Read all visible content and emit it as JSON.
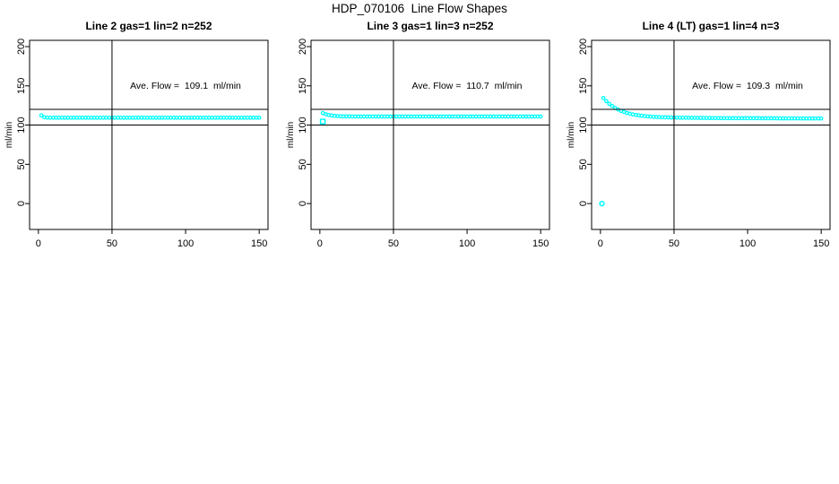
{
  "window_title": "HDP_070106  Line Flow Shapes",
  "colors": {
    "background": "#ffffff",
    "axis": "#000000",
    "points": "#00ffff"
  },
  "chart_data": {
    "type": "scatter",
    "title": "HDP_070106  Line Flow Shapes",
    "xlabel": "",
    "ylabel": "ml/min",
    "x_ticks": [
      0,
      50,
      100,
      150
    ],
    "y_ticks": [
      0,
      50,
      100,
      150,
      200
    ],
    "x_axis_range_shown": [
      -6,
      156
    ],
    "y_axis_range_shown": [
      -33,
      208
    ],
    "grid": false,
    "legend": "none",
    "reference_lines": {
      "horizontal_values": [
        100,
        120
      ],
      "vertical_values": [
        50
      ]
    },
    "annotation_anchor_data_coords": {
      "x": 100,
      "y": 150
    },
    "panels": [
      {
        "title": "Line 2 gas=1 lin=2 n=252",
        "annotation": "Ave. Flow =  109.1  ml/min",
        "ave_flow_ml_min": 109.1,
        "n": 252,
        "series": {
          "x_start": 2,
          "x_step": 2,
          "y_values": [
            112.4,
            110.0,
            109.5,
            109.4,
            109.4,
            109.4,
            109.4,
            109.4,
            109.4,
            109.4,
            109.4,
            109.4,
            109.4,
            109.4,
            109.4,
            109.4,
            109.4,
            109.4,
            109.4,
            109.4,
            109.4,
            109.4,
            109.4,
            109.4,
            109.4,
            109.4,
            109.4,
            109.4,
            109.4,
            109.4,
            109.4,
            109.4,
            109.4,
            109.4,
            109.4,
            109.4,
            109.4,
            109.4,
            109.4,
            109.4,
            109.4,
            109.4,
            109.4,
            109.4,
            109.4,
            109.4,
            109.4,
            109.4,
            109.4,
            109.4,
            109.4,
            109.4,
            109.4,
            109.4,
            109.4,
            109.4,
            109.4,
            109.4,
            109.4,
            109.4,
            109.4,
            109.4,
            109.4,
            109.4,
            109.4,
            109.4,
            109.4,
            109.4,
            109.4,
            109.4,
            109.4,
            109.4,
            109.4,
            109.4,
            109.4
          ]
        },
        "outliers": []
      },
      {
        "title": "Line 3 gas=1 lin=3 n=252",
        "annotation": "Ave. Flow =  110.7  ml/min",
        "ave_flow_ml_min": 110.7,
        "n": 252,
        "series": {
          "x_start": 2,
          "x_step": 2,
          "y_values": [
            115.4,
            113.9,
            112.9,
            112.3,
            111.8,
            111.5,
            111.3,
            111.2,
            111.1,
            111.0,
            110.9,
            110.9,
            110.9,
            110.9,
            110.9,
            110.9,
            110.9,
            110.9,
            110.9,
            110.9,
            110.9,
            110.9,
            110.9,
            110.9,
            110.9,
            110.9,
            110.9,
            110.9,
            110.9,
            110.9,
            110.9,
            110.9,
            110.9,
            110.9,
            110.9,
            110.9,
            110.9,
            110.9,
            110.9,
            110.9,
            110.9,
            110.9,
            110.9,
            110.9,
            110.9,
            110.9,
            110.9,
            110.9,
            110.9,
            110.9,
            110.9,
            110.9,
            110.9,
            110.9,
            110.9,
            110.9,
            110.9,
            110.9,
            110.9,
            110.9,
            110.9,
            110.9,
            110.9,
            110.9,
            110.9,
            110.9,
            110.9,
            110.9,
            110.9,
            110.9,
            110.9,
            110.9,
            110.9,
            110.9,
            110.9
          ]
        },
        "outliers": [
          {
            "x": 2,
            "y": 104.5,
            "marker": "square"
          }
        ]
      },
      {
        "title": "Line 4 (LT) gas=1 lin=4 n=3",
        "annotation": "Ave. Flow =  109.3  ml/min",
        "ave_flow_ml_min": 109.3,
        "n": 3,
        "series": {
          "x_start": 2,
          "x_step": 2,
          "y_values": [
            134.5,
            130.6,
            127.1,
            124.2,
            121.8,
            119.8,
            118.1,
            116.7,
            115.5,
            114.5,
            113.7,
            113.0,
            112.4,
            111.9,
            111.5,
            111.1,
            110.8,
            110.6,
            110.4,
            110.2,
            110.0,
            109.9,
            109.8,
            109.7,
            109.6,
            109.5,
            109.4,
            109.4,
            109.3,
            109.3,
            109.2,
            109.2,
            109.2,
            109.1,
            109.1,
            109.1,
            109.0,
            109.0,
            109.0,
            109.0,
            108.9,
            108.9,
            108.9,
            108.9,
            108.8,
            108.8,
            108.8,
            108.8,
            108.8,
            108.7,
            108.7,
            108.7,
            108.7,
            108.7,
            108.6,
            108.6,
            108.6,
            108.6,
            108.6,
            108.6,
            108.5,
            108.5,
            108.5,
            108.5,
            108.5,
            108.5,
            108.5,
            108.5,
            108.4,
            108.4,
            108.4,
            108.4,
            108.4,
            108.4,
            108.4
          ]
        },
        "outliers": [
          {
            "x": 1,
            "y": 0,
            "marker": "circle"
          }
        ]
      }
    ]
  }
}
